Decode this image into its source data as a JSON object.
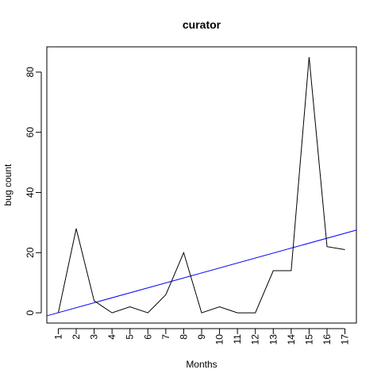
{
  "chart_data": {
    "type": "line",
    "title": "curator",
    "xlabel": "Months",
    "ylabel": "bug count",
    "x": [
      1,
      2,
      3,
      4,
      5,
      6,
      7,
      8,
      9,
      10,
      11,
      12,
      13,
      14,
      15,
      16,
      17
    ],
    "x_tick_labels": [
      "1",
      "2",
      "3",
      "4",
      "5",
      "6",
      "7",
      "8",
      "9",
      "10",
      "11",
      "12",
      "13",
      "14",
      "15",
      "16",
      "17"
    ],
    "y_tick_values": [
      0,
      20,
      40,
      60,
      80
    ],
    "y_tick_labels": [
      "0",
      "20",
      "40",
      "60",
      "80"
    ],
    "xlim": [
      0.36,
      17.64
    ],
    "ylim": [
      -3.4,
      88.4
    ],
    "grid": false,
    "series": [
      {
        "name": "bug count",
        "color": "#000000",
        "values": [
          0,
          28,
          4,
          0,
          2,
          0,
          6,
          20,
          0,
          2,
          0,
          0,
          14,
          14,
          85,
          22,
          21
        ]
      }
    ],
    "trend_line": {
      "name": "linear fit",
      "color": "#0000ff",
      "intercept": -1.6,
      "slope": 1.65
    }
  }
}
